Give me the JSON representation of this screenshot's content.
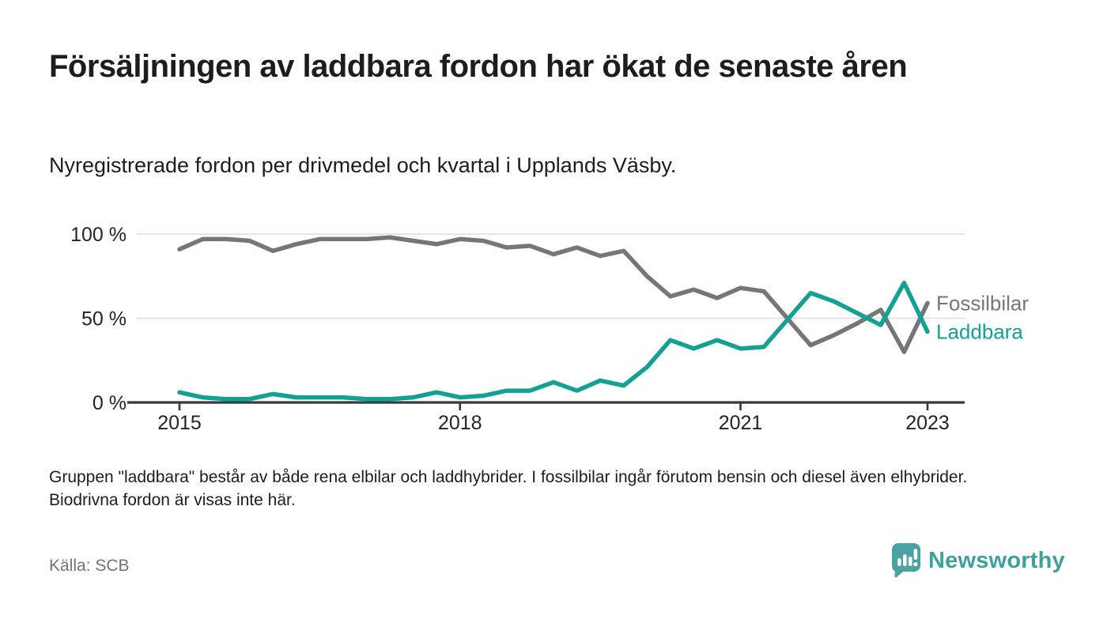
{
  "header": {
    "title": "Försäljningen av laddbara fordon har ökat de senaste åren",
    "subtitle": "Nyregistrerade fordon per drivmedel och kvartal i Upplands Väsby."
  },
  "chart_data": {
    "type": "line",
    "x_unit": "quarter",
    "grid": "horizontal",
    "ylim": [
      0,
      100
    ],
    "legend_position": "end-of-line-labels-right",
    "x_quarters": [
      "2015 Q1",
      "2015 Q2",
      "2015 Q3",
      "2015 Q4",
      "2016 Q1",
      "2016 Q2",
      "2016 Q3",
      "2016 Q4",
      "2017 Q1",
      "2017 Q2",
      "2017 Q3",
      "2017 Q4",
      "2018 Q1",
      "2018 Q2",
      "2018 Q3",
      "2018 Q4",
      "2019 Q1",
      "2019 Q2",
      "2019 Q3",
      "2019 Q4",
      "2020 Q1",
      "2020 Q2",
      "2020 Q3",
      "2020 Q4",
      "2021 Q1",
      "2021 Q2",
      "2021 Q3",
      "2021 Q4",
      "2022 Q1",
      "2022 Q2",
      "2022 Q3",
      "2022 Q4",
      "2023 Q1"
    ],
    "x_ticks": [
      {
        "index": 0,
        "label": "2015"
      },
      {
        "index": 12,
        "label": "2018"
      },
      {
        "index": 24,
        "label": "2021"
      },
      {
        "index": 32,
        "label": "2023"
      }
    ],
    "y_ticks": [
      {
        "value": 100,
        "label": "100 %"
      },
      {
        "value": 50,
        "label": "50 %"
      },
      {
        "value": 0,
        "label": "0 %"
      }
    ],
    "series": [
      {
        "name": "Fossilbilar",
        "color": "#75767b",
        "values": [
          91,
          97,
          97,
          96,
          90,
          94,
          97,
          97,
          97,
          98,
          96,
          94,
          97,
          96,
          92,
          93,
          88,
          92,
          87,
          90,
          75,
          63,
          67,
          62,
          68,
          66,
          50,
          34,
          40,
          47,
          55,
          30,
          59
        ]
      },
      {
        "name": "Laddbara",
        "color": "#12a192",
        "values": [
          6,
          3,
          2,
          2,
          5,
          3,
          3,
          3,
          2,
          2,
          3,
          6,
          3,
          4,
          7,
          7,
          12,
          7,
          13,
          10,
          21,
          37,
          32,
          37,
          32,
          33,
          49,
          65,
          60,
          53,
          46,
          71,
          42
        ]
      }
    ]
  },
  "footnote": {
    "text": "Gruppen \"laddbara\" består av både rena elbilar och laddhybrider. I fossilbilar ingår förutom bensin och diesel även elhybrider. Biodrivna fordon är visas inte här."
  },
  "source": {
    "label": "Källa: SCB"
  },
  "logo": {
    "text": "Newsworthy",
    "color": "#3fa0a0",
    "icon": "speech-bubble-bar-chart-icon"
  }
}
